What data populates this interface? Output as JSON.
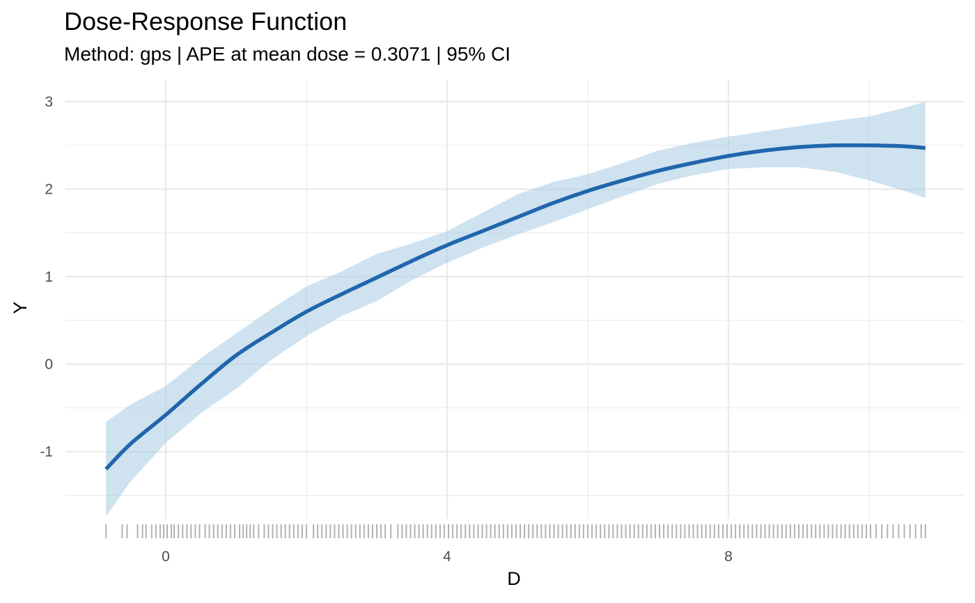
{
  "chart_data": {
    "type": "line",
    "title": "Dose-Response Function",
    "subtitle": "Method: gps | APE at mean dose = 0.3071 | 95% CI",
    "xlabel": "D",
    "ylabel": "Y",
    "xlim": [
      -0.85,
      10.9
    ],
    "ylim": [
      -1.74,
      3.1
    ],
    "x_ticks": [
      0,
      4,
      8
    ],
    "y_ticks": [
      -1,
      0,
      1,
      2,
      3
    ],
    "x_minor_ticks": [
      2,
      6,
      10
    ],
    "y_minor_ticks": [
      -1.5,
      -0.5,
      0.5,
      1.5,
      2.5
    ],
    "grid": true,
    "colors": {
      "line": "#2166ac",
      "band": "#a6cbe3",
      "rug": "#000000",
      "grid": "#ebebeb"
    },
    "series": [
      {
        "name": "estimate",
        "x": [
          -0.85,
          -0.5,
          0,
          0.5,
          1,
          1.5,
          2,
          2.5,
          3,
          3.5,
          4,
          4.5,
          5,
          5.5,
          6,
          6.5,
          7,
          7.5,
          8,
          8.5,
          9,
          9.5,
          10,
          10.5,
          10.8
        ],
        "y": [
          -1.2,
          -0.91,
          -0.58,
          -0.23,
          0.1,
          0.36,
          0.6,
          0.8,
          0.99,
          1.18,
          1.36,
          1.52,
          1.68,
          1.84,
          1.98,
          2.1,
          2.21,
          2.3,
          2.38,
          2.44,
          2.48,
          2.5,
          2.5,
          2.49,
          2.47
        ]
      }
    ],
    "ci_band": {
      "name": "95% CI",
      "x": [
        -0.85,
        -0.5,
        0,
        0.5,
        1,
        1.5,
        2,
        2.5,
        3,
        3.5,
        4,
        4.5,
        5,
        5.5,
        6,
        6.5,
        7,
        7.5,
        8,
        8.5,
        9,
        9.5,
        10,
        10.5,
        10.8
      ],
      "lower": [
        -1.74,
        -1.34,
        -0.9,
        -0.56,
        -0.28,
        0.05,
        0.32,
        0.55,
        0.72,
        0.96,
        1.16,
        1.33,
        1.48,
        1.62,
        1.77,
        1.92,
        2.06,
        2.16,
        2.23,
        2.25,
        2.25,
        2.2,
        2.1,
        1.98,
        1.9
      ],
      "upper": [
        -0.66,
        -0.46,
        -0.25,
        0.07,
        0.35,
        0.63,
        0.89,
        1.06,
        1.26,
        1.38,
        1.52,
        1.73,
        1.94,
        2.08,
        2.17,
        2.3,
        2.44,
        2.53,
        2.6,
        2.66,
        2.72,
        2.78,
        2.83,
        2.93,
        3.0
      ]
    },
    "rug": [
      -0.85,
      -0.62,
      -0.55,
      -0.4,
      -0.33,
      -0.28,
      -0.2,
      -0.14,
      -0.08,
      -0.03,
      0.02,
      0.08,
      0.12,
      0.18,
      0.24,
      0.3,
      0.36,
      0.42,
      0.48,
      0.56,
      0.62,
      0.68,
      0.74,
      0.8,
      0.86,
      0.92,
      0.98,
      1.05,
      1.1,
      1.15,
      1.2,
      1.25,
      1.32,
      1.4,
      1.46,
      1.52,
      1.58,
      1.64,
      1.7,
      1.76,
      1.82,
      1.88,
      1.94,
      2.0,
      2.1,
      2.16,
      2.22,
      2.28,
      2.34,
      2.4,
      2.46,
      2.52,
      2.58,
      2.64,
      2.7,
      2.76,
      2.82,
      2.88,
      2.94,
      3.0,
      3.06,
      3.12,
      3.2,
      3.3,
      3.36,
      3.42,
      3.48,
      3.54,
      3.6,
      3.66,
      3.72,
      3.78,
      3.84,
      3.9,
      3.96,
      4.02,
      4.08,
      4.14,
      4.2,
      4.26,
      4.32,
      4.38,
      4.44,
      4.5,
      4.56,
      4.62,
      4.68,
      4.74,
      4.8,
      4.86,
      4.92,
      4.98,
      5.04,
      5.1,
      5.16,
      5.22,
      5.28,
      5.34,
      5.4,
      5.46,
      5.52,
      5.58,
      5.64,
      5.7,
      5.76,
      5.82,
      5.88,
      5.94,
      6.0,
      6.06,
      6.12,
      6.18,
      6.24,
      6.3,
      6.36,
      6.42,
      6.48,
      6.54,
      6.6,
      6.66,
      6.72,
      6.78,
      6.84,
      6.9,
      6.96,
      7.02,
      7.08,
      7.14,
      7.2,
      7.26,
      7.32,
      7.38,
      7.44,
      7.5,
      7.56,
      7.62,
      7.68,
      7.74,
      7.8,
      7.86,
      7.92,
      7.98,
      8.04,
      8.1,
      8.16,
      8.22,
      8.28,
      8.34,
      8.4,
      8.46,
      8.52,
      8.58,
      8.64,
      8.7,
      8.76,
      8.82,
      8.88,
      8.94,
      9.0,
      9.06,
      9.12,
      9.18,
      9.24,
      9.3,
      9.36,
      9.42,
      9.48,
      9.54,
      9.6,
      9.66,
      9.72,
      9.78,
      9.84,
      9.9,
      9.96,
      10.02,
      10.1,
      10.18,
      10.26,
      10.34,
      10.42,
      10.5,
      10.58,
      10.66,
      10.74,
      10.8
    ]
  }
}
